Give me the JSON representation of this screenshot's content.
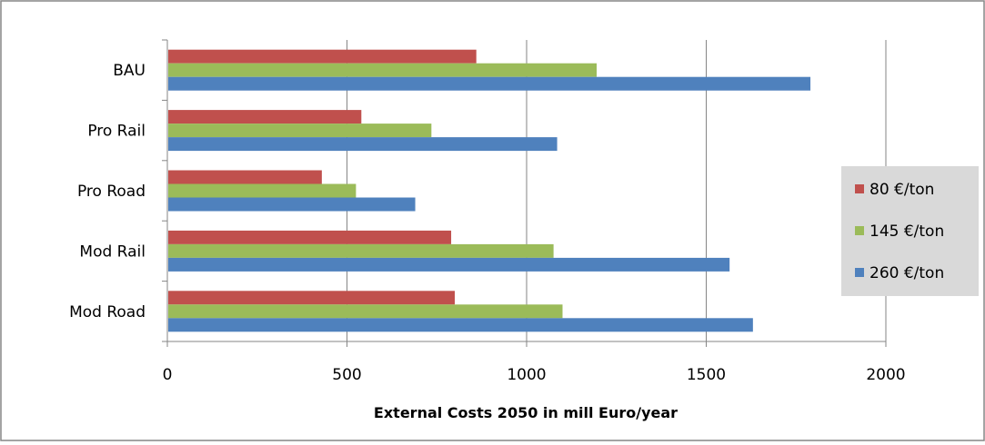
{
  "chart_data": {
    "type": "bar",
    "orientation": "horizontal",
    "title": "",
    "xlabel": "External Costs 2050 in mill Euro/year",
    "ylabel": "",
    "categories": [
      "BAU",
      "Pro Rail",
      "Pro Road",
      "Mod Rail",
      "Mod Road"
    ],
    "series": [
      {
        "name": "80 €/ton",
        "color": "#C0504D",
        "values": [
          860,
          540,
          430,
          790,
          800
        ]
      },
      {
        "name": "145 €/ton",
        "color": "#9BBB59",
        "values": [
          1195,
          735,
          525,
          1075,
          1100
        ]
      },
      {
        "name": "260 €/ton",
        "color": "#4F81BD",
        "values": [
          1790,
          1085,
          690,
          1565,
          1630
        ]
      }
    ],
    "xlim": [
      0,
      2000
    ],
    "x_ticks": [
      "0",
      "500",
      "1000",
      "1500",
      "2000"
    ],
    "grid": "vertical",
    "legend_position": "right"
  }
}
